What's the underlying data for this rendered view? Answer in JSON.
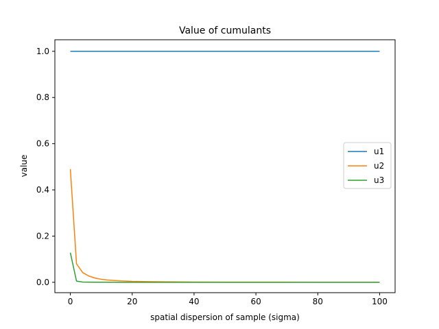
{
  "chart_data": {
    "type": "line",
    "title": "Value of cumulants",
    "xlabel": "spatial dispersion of sample (sigma)",
    "ylabel": "value",
    "xlim": [
      -5,
      105
    ],
    "ylim": [
      -0.045,
      1.05
    ],
    "xticks": [
      0,
      20,
      40,
      60,
      80,
      100
    ],
    "yticks": [
      0.0,
      0.2,
      0.4,
      0.6,
      0.8,
      1.0
    ],
    "grid": false,
    "legend_position": "center-right",
    "x": [
      0,
      2,
      4,
      6,
      8,
      10,
      12,
      14,
      16,
      18,
      20,
      25,
      30,
      40,
      50,
      60,
      70,
      80,
      90,
      100
    ],
    "series": [
      {
        "name": "u1",
        "color": "#1f77b4",
        "values": [
          1.0,
          1.0,
          1.0,
          1.0,
          1.0,
          1.0,
          1.0,
          1.0,
          1.0,
          1.0,
          1.0,
          1.0,
          1.0,
          1.0,
          1.0,
          1.0,
          1.0,
          1.0,
          1.0,
          1.0
        ]
      },
      {
        "name": "u2",
        "color": "#ff7f0e",
        "values": [
          0.49,
          0.08,
          0.042,
          0.027,
          0.018,
          0.013,
          0.01,
          0.008,
          0.006,
          0.005,
          0.004,
          0.003,
          0.002,
          0.001,
          0.0008,
          0.0006,
          0.0005,
          0.0004,
          0.0003,
          0.0003
        ]
      },
      {
        "name": "u3",
        "color": "#2ca02c",
        "values": [
          0.128,
          0.005,
          0.001,
          0.0005,
          0.0003,
          0.0002,
          0.0001,
          0.0001,
          0.0,
          0.0,
          0.0,
          0.0,
          0.0,
          0.0,
          0.0,
          0.0,
          0.0,
          0.0,
          0.0,
          0.0
        ]
      }
    ]
  }
}
